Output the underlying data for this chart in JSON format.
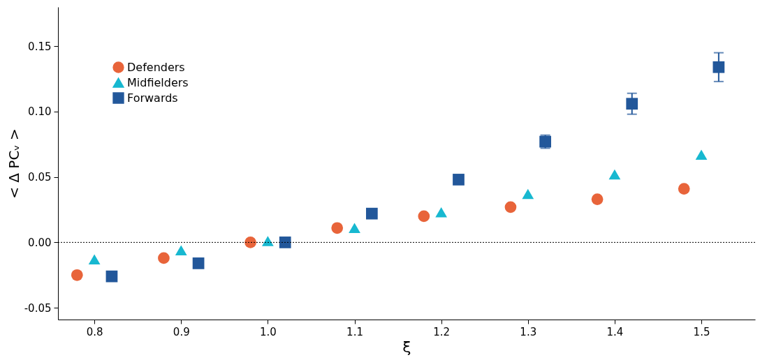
{
  "chart_data": {
    "type": "scatter",
    "xlabel": "ξ",
    "ylabel": "< Δ PCᵥ >",
    "xlim": [
      0.758,
      1.562
    ],
    "ylim": [
      -0.059,
      0.18
    ],
    "xticks": [
      {
        "value": 0.8,
        "label": "0.8"
      },
      {
        "value": 0.9,
        "label": "0.9"
      },
      {
        "value": 1.0,
        "label": "1.0"
      },
      {
        "value": 1.1,
        "label": "1.1"
      },
      {
        "value": 1.2,
        "label": "1.2"
      },
      {
        "value": 1.3,
        "label": "1.3"
      },
      {
        "value": 1.4,
        "label": "1.4"
      },
      {
        "value": 1.5,
        "label": "1.5"
      }
    ],
    "yticks": [
      {
        "value": -0.05,
        "label": "-0.05"
      },
      {
        "value": 0,
        "label": "0.00"
      },
      {
        "value": 0.05,
        "label": "0.05"
      },
      {
        "value": 0.1,
        "label": "0.10"
      },
      {
        "value": 0.15,
        "label": "0.15"
      }
    ],
    "grid": false,
    "legend": "top left",
    "ref_lines": [
      {
        "axis": "y",
        "value": 0,
        "line_style": "dotted",
        "color": "#000000"
      }
    ],
    "series": [
      {
        "name": "Defenders",
        "color": "#e8643a",
        "marker": "circle",
        "x": [
          0.78,
          0.88,
          0.98,
          1.08,
          1.18,
          1.28,
          1.38,
          1.48
        ],
        "values": [
          -0.025,
          -0.012,
          0.0,
          0.011,
          0.02,
          0.027,
          0.033,
          0.041
        ]
      },
      {
        "name": "Midfielders",
        "color": "#17b8d0",
        "marker": "triangle",
        "x": [
          0.8,
          0.9,
          1.0,
          1.1,
          1.2,
          1.3,
          1.4,
          1.5
        ],
        "values": [
          -0.013,
          -0.006,
          0.001,
          0.011,
          0.023,
          0.037,
          0.052,
          0.067
        ]
      },
      {
        "name": "Forwards",
        "color": "#22579a",
        "marker": "square",
        "x": [
          0.82,
          0.92,
          1.02,
          1.12,
          1.22,
          1.32,
          1.42,
          1.52
        ],
        "values": [
          -0.026,
          -0.016,
          0.0,
          0.022,
          0.048,
          0.077,
          0.106,
          0.134
        ],
        "errors": [
          null,
          null,
          null,
          null,
          null,
          0.005,
          0.008,
          0.011
        ]
      }
    ]
  }
}
